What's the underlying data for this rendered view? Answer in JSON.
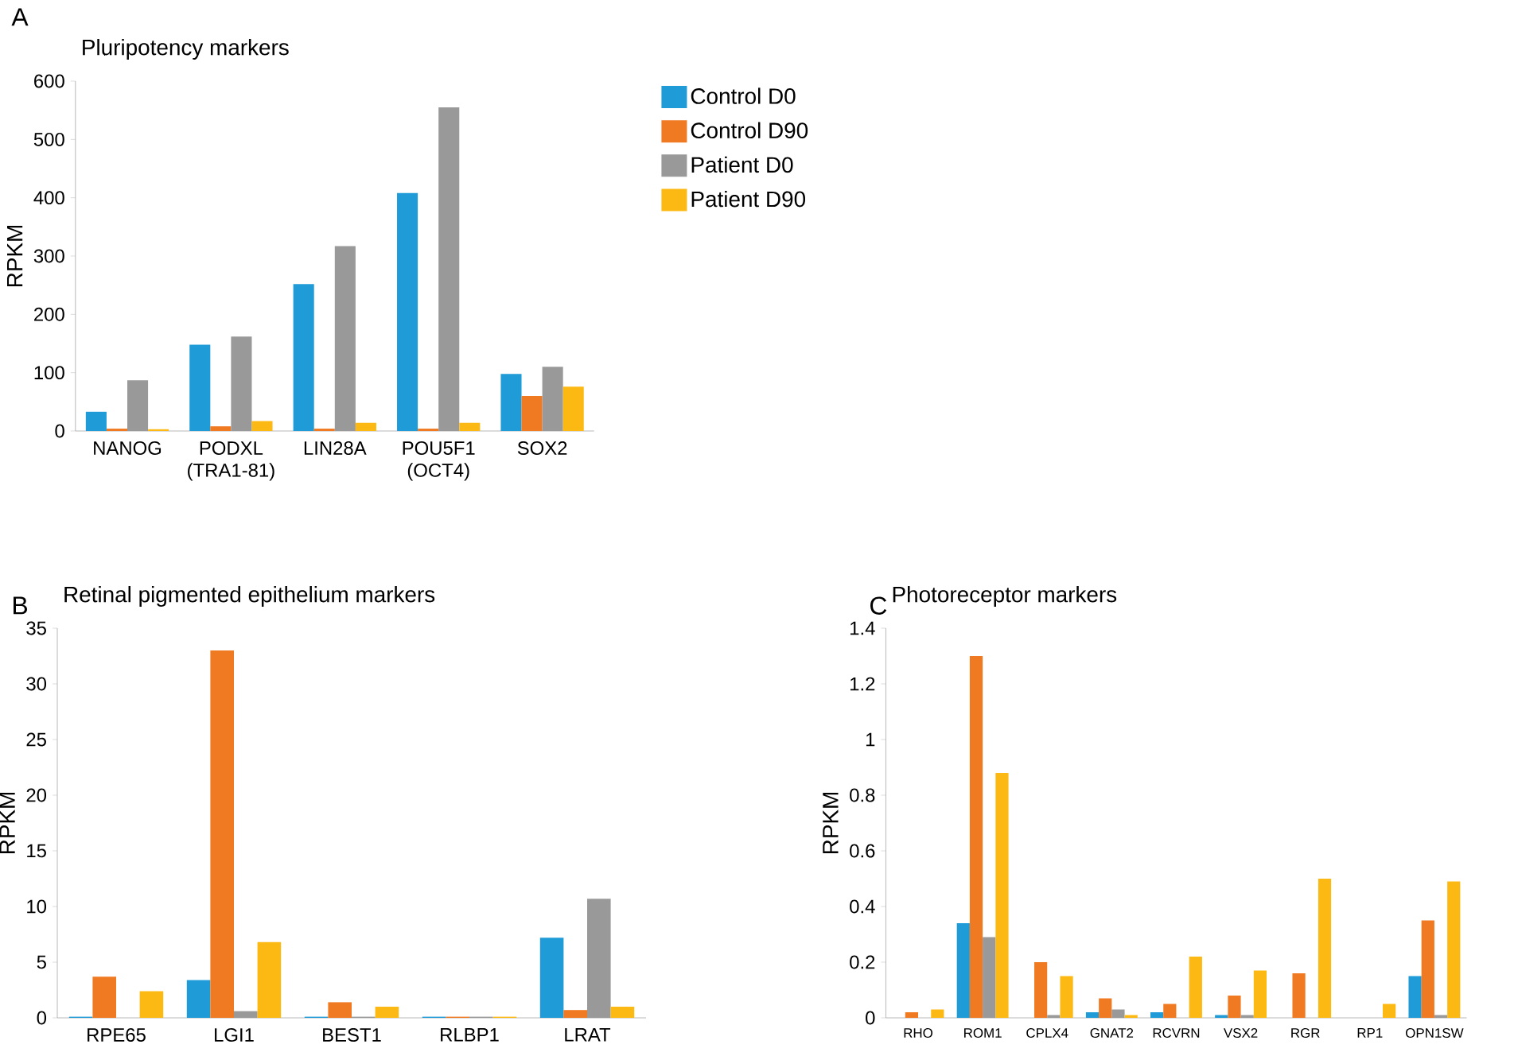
{
  "chart_data": [
    {
      "type": "bar",
      "title": "Pluripotency markers",
      "ylabel": "RPKM",
      "annotations": [
        "A"
      ],
      "categories": [
        "NANOG",
        "PODXL (TRA1-81)",
        "LIN28A",
        "POU5F1 (OCT4)",
        "SOX2"
      ],
      "series": [
        {
          "name": "Control D0",
          "color": "#1f9bd7",
          "values": [
            33,
            148,
            252,
            408,
            98
          ]
        },
        {
          "name": "Control D90",
          "color": "#f07a22",
          "values": [
            4,
            8,
            4,
            4,
            60
          ]
        },
        {
          "name": "Patient D0",
          "color": "#999999",
          "values": [
            87,
            162,
            317,
            555,
            110
          ]
        },
        {
          "name": "Patient D90",
          "color": "#fdb913",
          "values": [
            3,
            17,
            14,
            14,
            76
          ]
        }
      ],
      "ylim": [
        0,
        600
      ],
      "yticks": [
        0,
        100,
        200,
        300,
        400,
        500,
        600
      ],
      "legend": "right"
    },
    {
      "type": "bar",
      "title": "Retinal pigmented epithelium markers",
      "ylabel": "RPKM",
      "annotations": [
        "B"
      ],
      "categories": [
        "RPE65",
        "LGI1",
        "BEST1",
        "RLBP1",
        "LRAT"
      ],
      "series": [
        {
          "color": "#1f9bd7",
          "values": [
            0.1,
            3.4,
            0.1,
            0.1,
            7.2
          ]
        },
        {
          "color": "#f07a22",
          "values": [
            3.7,
            33,
            1.4,
            0.1,
            0.7
          ]
        },
        {
          "color": "#999999",
          "values": [
            0,
            0.6,
            0.1,
            0.1,
            10.7
          ]
        },
        {
          "color": "#fdb913",
          "values": [
            2.4,
            6.8,
            1.0,
            0.1,
            1.0
          ]
        }
      ],
      "ylim": [
        0,
        35
      ],
      "yticks": [
        0,
        5,
        10,
        15,
        20,
        25,
        30,
        35
      ]
    },
    {
      "type": "bar",
      "title": "Photoreceptor markers",
      "ylabel": "RPKM",
      "annotations": [
        "C"
      ],
      "categories": [
        "RHO",
        "ROM1",
        "CPLX4",
        "GNAT2",
        "RCVRN",
        "VSX2",
        "RGR",
        "RP1",
        "OPN1SW"
      ],
      "series": [
        {
          "color": "#1f9bd7",
          "values": [
            0,
            0.34,
            0,
            0.02,
            0.02,
            0.01,
            0,
            0,
            0.15
          ]
        },
        {
          "color": "#f07a22",
          "values": [
            0.02,
            1.3,
            0.2,
            0.07,
            0.05,
            0.08,
            0.16,
            0,
            0.35
          ]
        },
        {
          "color": "#999999",
          "values": [
            0,
            0.29,
            0.01,
            0.03,
            0,
            0.01,
            0,
            0,
            0.01
          ]
        },
        {
          "color": "#fdb913",
          "values": [
            0.03,
            0.88,
            0.15,
            0.01,
            0.22,
            0.17,
            0.5,
            0.05,
            0.49
          ]
        }
      ],
      "ylim": [
        0,
        1.4
      ],
      "yticks": [
        0,
        0.2,
        0.4,
        0.6,
        0.8,
        1,
        1.2,
        1.4
      ]
    }
  ]
}
